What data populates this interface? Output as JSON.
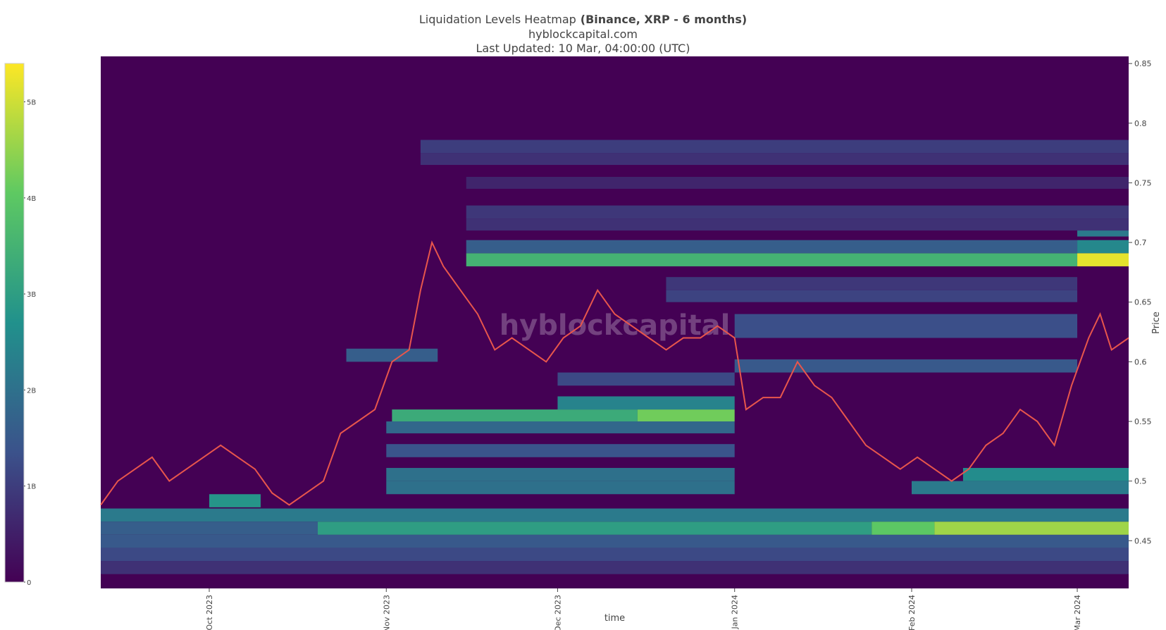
{
  "chart_data": {
    "type": "heatmap",
    "title": "Liquidation Levels Heatmap",
    "title_bold": "(Binance, XRP - 6 months)",
    "subtitle": "hyblockcapital.com",
    "updated": "Last Updated: 10 Mar, 04:00:00 (UTC)",
    "watermark": "hyblockcapital",
    "x_label": "time",
    "y_label": "Price",
    "colorscale": "viridis",
    "background_color": "#440154",
    "zlim": [
      0,
      5400000000
    ],
    "zticks": [
      0,
      {
        "value": 1000000000,
        "label": "1B"
      },
      {
        "value": 2000000000,
        "label": "2B"
      },
      {
        "value": 3000000000,
        "label": "3B"
      },
      {
        "value": 4000000000,
        "label": "4B"
      },
      {
        "value": 5000000000,
        "label": "5B"
      }
    ],
    "xlim": [
      "2023-09-12",
      "2024-03-10"
    ],
    "xticks": [
      {
        "value": "2023-10-01",
        "label": "Oct 2023"
      },
      {
        "value": "2023-11-01",
        "label": "Nov 2023"
      },
      {
        "value": "2023-12-01",
        "label": "Dec 2023"
      },
      {
        "value": "2024-01-01",
        "label": "Jan 2024"
      },
      {
        "value": "2024-02-01",
        "label": "Feb 2024"
      },
      {
        "value": "2024-03-01",
        "label": "Mar 2024"
      }
    ],
    "ylim": [
      0.41,
      0.856
    ],
    "yticks": [
      0.45,
      0.5,
      0.55,
      0.6,
      0.65,
      0.7,
      0.75,
      0.8,
      0.85
    ],
    "cells": [
      {
        "x": [
          "2023-09-12",
          "2024-03-10"
        ],
        "y": [
          0.422,
          0.433
        ],
        "value": 800000000
      },
      {
        "x": [
          "2023-09-12",
          "2024-03-10"
        ],
        "y": [
          0.433,
          0.444
        ],
        "value": 1200000000
      },
      {
        "x": [
          "2023-09-12",
          "2024-03-10"
        ],
        "y": [
          0.444,
          0.455
        ],
        "value": 1500000000
      },
      {
        "x": [
          "2023-09-12",
          "2023-10-20"
        ],
        "y": [
          0.455,
          0.466
        ],
        "value": 1600000000
      },
      {
        "x": [
          "2023-10-20",
          "2024-01-25"
        ],
        "y": [
          0.455,
          0.466
        ],
        "value": 3000000000
      },
      {
        "x": [
          "2024-01-25",
          "2024-02-05"
        ],
        "y": [
          0.455,
          0.466
        ],
        "value": 4000000000
      },
      {
        "x": [
          "2024-02-05",
          "2024-03-10"
        ],
        "y": [
          0.455,
          0.466
        ],
        "value": 4600000000
      },
      {
        "x": [
          "2023-09-12",
          "2024-03-10"
        ],
        "y": [
          0.466,
          0.477
        ],
        "value": 2200000000
      },
      {
        "x": [
          "2023-10-01",
          "2023-10-10"
        ],
        "y": [
          0.478,
          0.489
        ],
        "value": 2800000000
      },
      {
        "x": [
          "2023-11-01",
          "2024-01-01"
        ],
        "y": [
          0.489,
          0.5
        ],
        "value": 2000000000
      },
      {
        "x": [
          "2024-02-01",
          "2024-03-10"
        ],
        "y": [
          0.489,
          0.5
        ],
        "value": 2200000000
      },
      {
        "x": [
          "2023-11-01",
          "2024-01-01"
        ],
        "y": [
          0.5,
          0.511
        ],
        "value": 2000000000
      },
      {
        "x": [
          "2024-02-10",
          "2024-03-10"
        ],
        "y": [
          0.5,
          0.511
        ],
        "value": 2600000000
      },
      {
        "x": [
          "2023-11-01",
          "2024-01-01"
        ],
        "y": [
          0.52,
          0.531
        ],
        "value": 1400000000
      },
      {
        "x": [
          "2023-11-01",
          "2024-01-01"
        ],
        "y": [
          0.54,
          0.55
        ],
        "value": 1800000000
      },
      {
        "x": [
          "2023-11-02",
          "2023-12-15"
        ],
        "y": [
          0.55,
          0.56
        ],
        "value": 3300000000
      },
      {
        "x": [
          "2023-12-15",
          "2024-01-01"
        ],
        "y": [
          0.55,
          0.56
        ],
        "value": 4200000000
      },
      {
        "x": [
          "2023-12-01",
          "2024-01-01"
        ],
        "y": [
          0.56,
          0.571
        ],
        "value": 2400000000
      },
      {
        "x": [
          "2023-12-01",
          "2024-01-01"
        ],
        "y": [
          0.58,
          0.591
        ],
        "value": 1200000000
      },
      {
        "x": [
          "2024-01-01",
          "2024-03-01"
        ],
        "y": [
          0.591,
          0.602
        ],
        "value": 1500000000
      },
      {
        "x": [
          "2023-10-25",
          "2023-11-10"
        ],
        "y": [
          0.6,
          0.611
        ],
        "value": 1600000000
      },
      {
        "x": [
          "2024-01-01",
          "2024-03-01"
        ],
        "y": [
          0.62,
          0.64
        ],
        "value": 1300000000
      },
      {
        "x": [
          "2023-12-20",
          "2024-03-01"
        ],
        "y": [
          0.65,
          0.66
        ],
        "value": 1100000000
      },
      {
        "x": [
          "2023-12-20",
          "2024-03-01"
        ],
        "y": [
          0.66,
          0.671
        ],
        "value": 900000000
      },
      {
        "x": [
          "2023-11-15",
          "2024-03-01"
        ],
        "y": [
          0.68,
          0.691
        ],
        "value": 3500000000
      },
      {
        "x": [
          "2024-03-01",
          "2024-03-10"
        ],
        "y": [
          0.68,
          0.691
        ],
        "value": 5200000000
      },
      {
        "x": [
          "2023-11-15",
          "2024-03-01"
        ],
        "y": [
          0.691,
          0.702
        ],
        "value": 1600000000
      },
      {
        "x": [
          "2024-03-01",
          "2024-03-10"
        ],
        "y": [
          0.691,
          0.702
        ],
        "value": 2500000000
      },
      {
        "x": [
          "2024-03-01",
          "2024-03-10"
        ],
        "y": [
          0.705,
          0.715
        ],
        "value": 2200000000
      },
      {
        "x": [
          "2023-11-15",
          "2024-03-10"
        ],
        "y": [
          0.71,
          0.72
        ],
        "value": 800000000
      },
      {
        "x": [
          "2023-11-15",
          "2024-03-10"
        ],
        "y": [
          0.72,
          0.731
        ],
        "value": 900000000
      },
      {
        "x": [
          "2023-11-15",
          "2024-03-10"
        ],
        "y": [
          0.745,
          0.755
        ],
        "value": 600000000
      },
      {
        "x": [
          "2023-11-07",
          "2024-03-10"
        ],
        "y": [
          0.765,
          0.775
        ],
        "value": 800000000
      },
      {
        "x": [
          "2023-11-07",
          "2024-03-10"
        ],
        "y": [
          0.775,
          0.786
        ],
        "value": 1000000000
      }
    ],
    "price": {
      "name": "Price",
      "color": "#e8564c",
      "x": [
        "2023-09-12",
        "2023-09-15",
        "2023-09-18",
        "2023-09-21",
        "2023-09-24",
        "2023-09-27",
        "2023-09-30",
        "2023-10-03",
        "2023-10-06",
        "2023-10-09",
        "2023-10-12",
        "2023-10-15",
        "2023-10-18",
        "2023-10-21",
        "2023-10-24",
        "2023-10-27",
        "2023-10-30",
        "2023-11-02",
        "2023-11-05",
        "2023-11-07",
        "2023-11-09",
        "2023-11-11",
        "2023-11-14",
        "2023-11-17",
        "2023-11-20",
        "2023-11-23",
        "2023-11-26",
        "2023-11-29",
        "2023-12-02",
        "2023-12-05",
        "2023-12-08",
        "2023-12-11",
        "2023-12-14",
        "2023-12-17",
        "2023-12-20",
        "2023-12-23",
        "2023-12-26",
        "2023-12-29",
        "2024-01-01",
        "2024-01-03",
        "2024-01-06",
        "2024-01-09",
        "2024-01-12",
        "2024-01-15",
        "2024-01-18",
        "2024-01-21",
        "2024-01-24",
        "2024-01-27",
        "2024-01-30",
        "2024-02-02",
        "2024-02-05",
        "2024-02-08",
        "2024-02-11",
        "2024-02-14",
        "2024-02-17",
        "2024-02-20",
        "2024-02-23",
        "2024-02-26",
        "2024-02-29",
        "2024-03-03",
        "2024-03-05",
        "2024-03-07",
        "2024-03-10"
      ],
      "values": [
        0.48,
        0.5,
        0.51,
        0.52,
        0.5,
        0.51,
        0.52,
        0.53,
        0.52,
        0.51,
        0.49,
        0.48,
        0.49,
        0.5,
        0.54,
        0.55,
        0.56,
        0.6,
        0.61,
        0.66,
        0.7,
        0.68,
        0.66,
        0.64,
        0.61,
        0.62,
        0.61,
        0.6,
        0.62,
        0.63,
        0.66,
        0.64,
        0.63,
        0.62,
        0.61,
        0.62,
        0.62,
        0.63,
        0.62,
        0.56,
        0.57,
        0.57,
        0.6,
        0.58,
        0.57,
        0.55,
        0.53,
        0.52,
        0.51,
        0.52,
        0.51,
        0.5,
        0.51,
        0.53,
        0.54,
        0.56,
        0.55,
        0.53,
        0.58,
        0.62,
        0.64,
        0.61,
        0.62
      ]
    }
  }
}
